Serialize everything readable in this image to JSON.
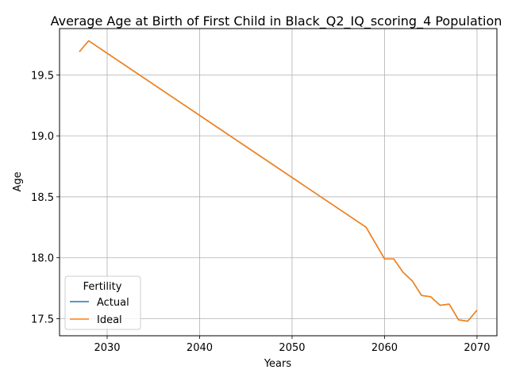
{
  "chart_data": {
    "type": "line",
    "title": "Average Age at Birth of First Child in Black_Q2_IQ_scoring_4 Population",
    "xlabel": "Years",
    "ylabel": "Age",
    "xlim": [
      2024.85,
      2072.15
    ],
    "ylim": [
      17.36,
      19.88
    ],
    "xticks": [
      2030,
      2040,
      2050,
      2060,
      2070
    ],
    "yticks": [
      17.5,
      18.0,
      18.5,
      19.0,
      19.5
    ],
    "xtick_labels": [
      "2030",
      "2040",
      "2050",
      "2060",
      "2070"
    ],
    "ytick_labels": [
      "17.5",
      "18.0",
      "18.5",
      "19.0",
      "19.5"
    ],
    "grid": true,
    "legend": {
      "title": "Fertility",
      "placement": "lower-left"
    },
    "series": [
      {
        "name": "Actual",
        "color": "#1f77b4",
        "x": [
          2027,
          2028,
          2058,
          2060,
          2061,
          2062,
          2063,
          2064,
          2065,
          2066,
          2067,
          2068,
          2069,
          2070
        ],
        "y": [
          19.69,
          19.78,
          18.25,
          17.99,
          17.99,
          17.88,
          17.81,
          17.69,
          17.68,
          17.61,
          17.62,
          17.49,
          17.48,
          17.57
        ]
      },
      {
        "name": "Ideal",
        "color": "#ff7f0e",
        "x": [
          2027,
          2028,
          2058,
          2060,
          2061,
          2062,
          2063,
          2064,
          2065,
          2066,
          2067,
          2068,
          2069,
          2070
        ],
        "y": [
          19.69,
          19.78,
          18.25,
          17.99,
          17.99,
          17.88,
          17.81,
          17.69,
          17.68,
          17.61,
          17.62,
          17.49,
          17.48,
          17.57
        ]
      }
    ]
  }
}
